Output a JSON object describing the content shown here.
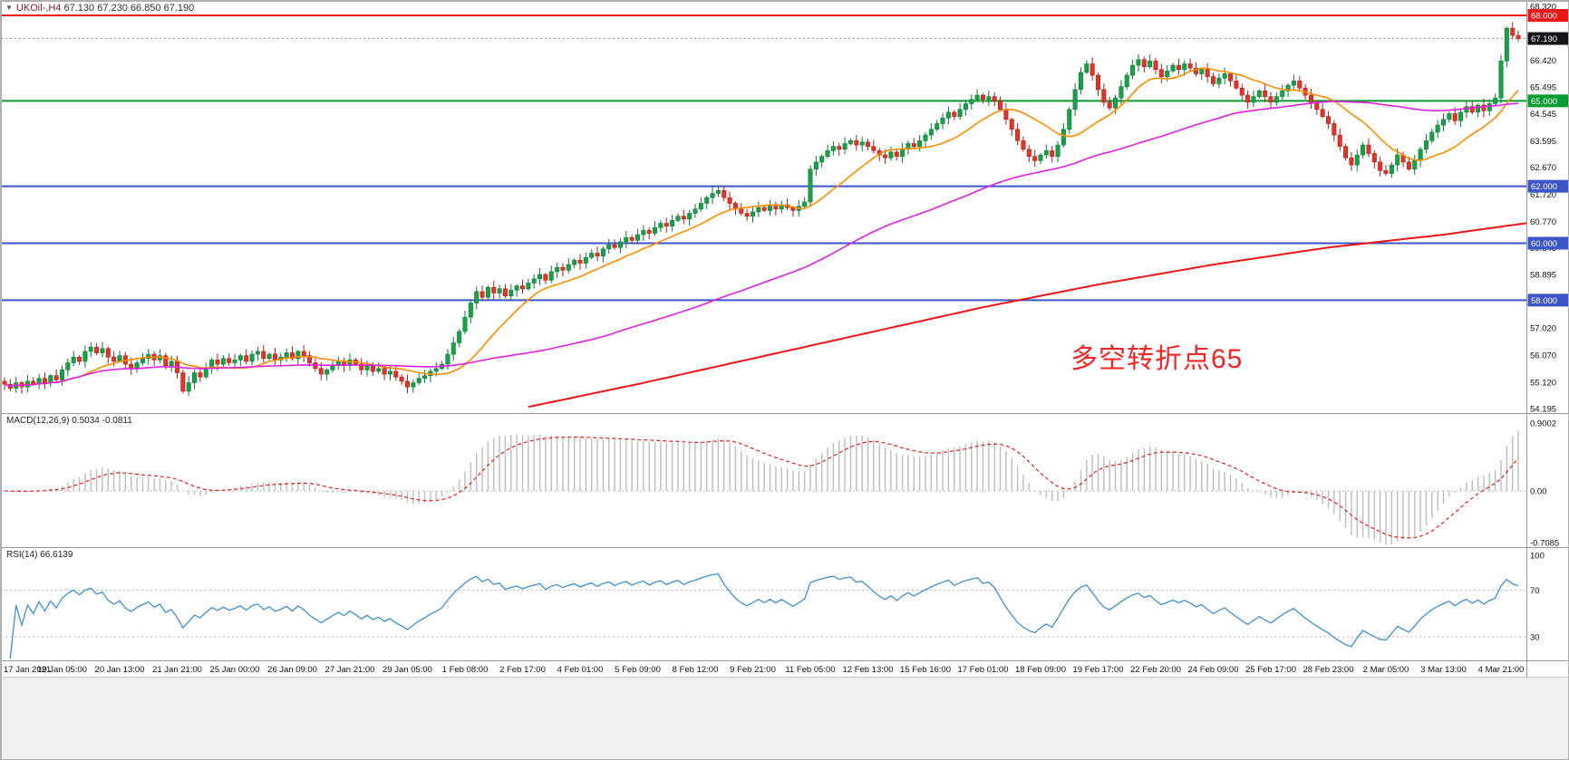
{
  "header": {
    "symbol": "UKOil-,H4",
    "ohlc": "67.130 67.230 66.850 67.190"
  },
  "indicators": {
    "macd_label": "MACD(12,26,9) 0.5034 -0.0811",
    "rsi_label": "RSI(14) 66.6139"
  },
  "chart_data": {
    "type": "candlestick",
    "symbol": "UKOil-,H4",
    "timeframe": "H4",
    "ohlc_display": {
      "open": "67.130",
      "high": "67.230",
      "low": "66.850",
      "close": "67.190"
    },
    "annotation": {
      "text": "多空转折点65"
    },
    "price_axis": {
      "min": 54.195,
      "max": 68.32,
      "ticks": [
        "68.320",
        "66.420",
        "65.495",
        "64.545",
        "63.595",
        "62.670",
        "61.720",
        "60.770",
        "59.845",
        "58.895",
        "57.020",
        "56.070",
        "55.120",
        "54.195"
      ]
    },
    "levels": [
      {
        "price": 68.0,
        "label": "68.000",
        "color": "#ee1515"
      },
      {
        "price": 65.0,
        "label": "65.000",
        "color": "#089b30"
      },
      {
        "price": 62.0,
        "label": "62.000",
        "color": "#3c55c8"
      },
      {
        "price": 60.0,
        "label": "60.000",
        "color": "#3c55c8"
      },
      {
        "price": 58.0,
        "label": "58.000",
        "color": "#3c55c8"
      }
    ],
    "current_price": {
      "value": 67.19,
      "label": "67.190",
      "badge_color": "#14151a"
    },
    "time_axis": [
      "17 Jan 2021",
      "19 Jan 05:00",
      "20 Jan 13:00",
      "21 Jan 21:00",
      "25 Jan 00:00",
      "26 Jan 09:00",
      "27 Jan 21:00",
      "29 Jan 05:00",
      "1 Feb 08:00",
      "2 Feb 17:00",
      "4 Feb 01:00",
      "5 Feb 09:00",
      "8 Feb 12:00",
      "9 Feb 21:00",
      "11 Feb 05:00",
      "12 Feb 13:00",
      "15 Feb 16:00",
      "17 Feb 01:00",
      "18 Feb 09:00",
      "19 Feb 17:00",
      "22 Feb 20:00",
      "24 Feb 09:00",
      "25 Feb 17:00",
      "28 Feb 23:00",
      "2 Mar 05:00",
      "3 Mar 13:00",
      "4 Mar 21:00"
    ],
    "label_every_n_bars": 10,
    "first_open": 55.15,
    "closes": [
      55.05,
      54.9,
      55.1,
      54.95,
      55.15,
      55.05,
      55.25,
      55.1,
      55.35,
      55.2,
      55.55,
      55.8,
      56.0,
      55.85,
      56.2,
      56.35,
      56.15,
      56.3,
      56.0,
      55.85,
      56.05,
      55.75,
      55.6,
      55.8,
      55.95,
      56.1,
      55.9,
      56.05,
      55.7,
      55.85,
      55.45,
      54.8,
      55.1,
      55.45,
      55.3,
      55.6,
      55.9,
      55.75,
      55.95,
      55.8,
      55.9,
      56.05,
      55.85,
      56.1,
      56.2,
      55.95,
      56.1,
      55.9,
      56.0,
      56.15,
      55.95,
      56.2,
      56.05,
      55.8,
      55.6,
      55.4,
      55.55,
      55.7,
      55.85,
      55.7,
      55.9,
      55.75,
      55.55,
      55.7,
      55.5,
      55.6,
      55.4,
      55.5,
      55.3,
      55.15,
      54.95,
      55.1,
      55.25,
      55.35,
      55.5,
      55.6,
      55.75,
      56.1,
      56.5,
      56.9,
      57.4,
      57.9,
      58.3,
      58.1,
      58.45,
      58.25,
      58.4,
      58.15,
      58.35,
      58.5,
      58.4,
      58.6,
      58.75,
      58.9,
      58.7,
      59.0,
      59.15,
      59.05,
      59.25,
      59.4,
      59.3,
      59.5,
      59.65,
      59.55,
      59.8,
      59.95,
      59.85,
      60.05,
      60.2,
      60.1,
      60.3,
      60.45,
      60.35,
      60.55,
      60.7,
      60.6,
      60.8,
      60.95,
      60.85,
      61.05,
      61.2,
      61.4,
      61.6,
      61.75,
      61.85,
      61.6,
      61.4,
      61.2,
      61.05,
      60.95,
      61.1,
      61.25,
      61.15,
      61.3,
      61.2,
      61.35,
      61.25,
      61.15,
      61.3,
      61.45,
      62.6,
      62.85,
      63.05,
      63.25,
      63.4,
      63.3,
      63.5,
      63.6,
      63.45,
      63.55,
      63.4,
      63.25,
      63.1,
      63.0,
      63.2,
      63.05,
      63.3,
      63.5,
      63.4,
      63.6,
      63.8,
      64.0,
      64.2,
      64.4,
      64.6,
      64.45,
      64.7,
      64.9,
      65.05,
      65.2,
      65.05,
      65.15,
      65.0,
      64.7,
      64.35,
      64.0,
      63.6,
      63.3,
      63.05,
      62.9,
      63.1,
      63.25,
      63.05,
      63.45,
      64.0,
      64.7,
      65.4,
      66.0,
      66.3,
      65.9,
      65.4,
      64.95,
      64.75,
      65.1,
      65.5,
      65.9,
      66.25,
      66.45,
      66.2,
      66.4,
      66.1,
      65.85,
      66.05,
      66.25,
      66.1,
      66.3,
      66.15,
      65.95,
      66.1,
      65.85,
      65.6,
      65.8,
      65.95,
      65.7,
      65.45,
      65.2,
      64.95,
      65.15,
      65.35,
      65.15,
      64.95,
      65.15,
      65.35,
      65.55,
      65.7,
      65.45,
      65.2,
      64.95,
      64.7,
      64.45,
      64.2,
      63.8,
      63.4,
      63.0,
      62.75,
      63.1,
      63.45,
      63.15,
      62.85,
      62.55,
      62.45,
      62.75,
      63.1,
      62.85,
      62.6,
      62.9,
      63.3,
      63.6,
      63.9,
      64.15,
      64.35,
      64.55,
      64.3,
      64.6,
      64.8,
      64.6,
      64.85,
      64.65,
      64.9,
      65.1,
      66.4,
      67.55,
      67.3,
      67.19
    ],
    "moving_averages": [
      {
        "name": "fast",
        "color": "#ff8c00",
        "period": 14
      },
      {
        "name": "medium",
        "color": "#e020e0",
        "period": 75
      },
      {
        "name": "slow",
        "color": "#ee1515",
        "waypoints": [
          [
            91,
            54.25
          ],
          [
            110,
            55.05
          ],
          [
            130,
            55.95
          ],
          [
            150,
            56.85
          ],
          [
            170,
            57.75
          ],
          [
            190,
            58.55
          ],
          [
            210,
            59.25
          ],
          [
            230,
            59.85
          ],
          [
            250,
            60.3
          ],
          [
            266,
            60.75
          ]
        ]
      }
    ],
    "macd": {
      "params": "12,26,9",
      "fast": 12,
      "slow": 26,
      "signal": 9,
      "value_main": "0.5034",
      "value_signal": "-0.0811",
      "axis_ticks": [
        "0.9002",
        "0.00",
        "-0.7085"
      ],
      "range": [
        -0.7085,
        0.9002
      ]
    },
    "rsi": {
      "period": 14,
      "value": "66.6139",
      "axis_ticks": [
        "100",
        "70",
        "30"
      ],
      "guide_levels": [
        70,
        30
      ]
    },
    "colors": {
      "bull": "#17a24a",
      "bull_stroke": "#0b7b34",
      "bear": "#e0352b",
      "bear_stroke": "#b01f16",
      "macd_hist": "#bdbdbd",
      "macd_signal": "#e02020",
      "rsi_line": "#3f8fd2",
      "annotation": "#f32525",
      "current_badge": "#14151a"
    }
  }
}
